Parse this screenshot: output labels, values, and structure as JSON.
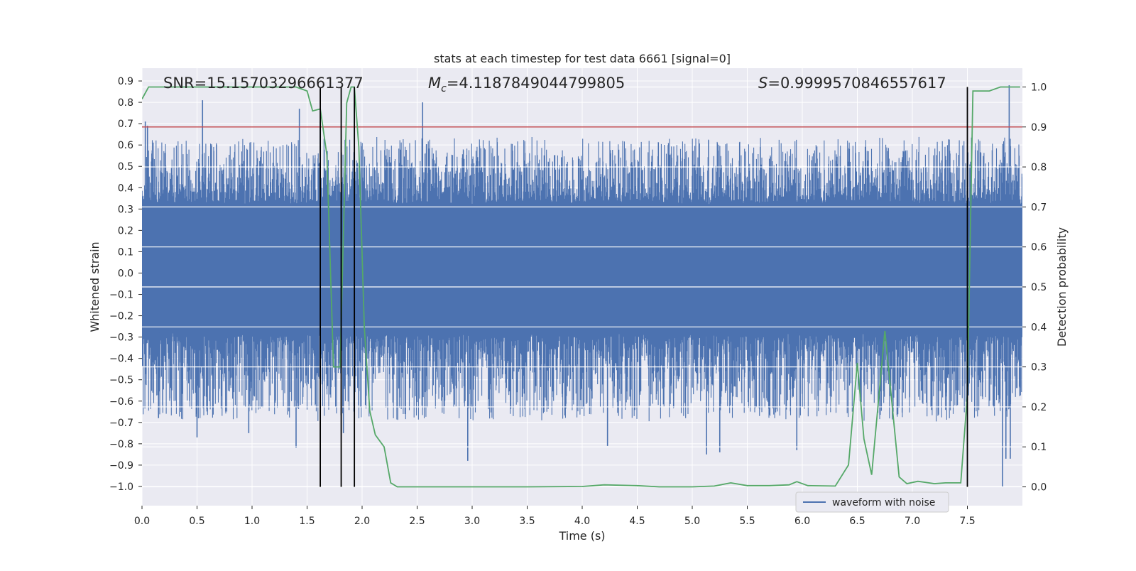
{
  "chart_data": {
    "type": "line",
    "title": "stats at each timestep for test data 6661 [signal=0]",
    "xlabel": "Time (s)",
    "ylabel_left": "Whitened strain",
    "ylabel_right": "Detection probability",
    "xlim": [
      0.0,
      8.0
    ],
    "ylim_left": [
      -1.09,
      0.96
    ],
    "ylim_right": [
      -0.047,
      1.047
    ],
    "x_ticks": [
      "0.0",
      "0.5",
      "1.0",
      "1.5",
      "2.0",
      "2.5",
      "3.0",
      "3.5",
      "4.0",
      "4.5",
      "5.0",
      "5.5",
      "6.0",
      "6.5",
      "7.0",
      "7.5"
    ],
    "x_tick_values": [
      0.0,
      0.5,
      1.0,
      1.5,
      2.0,
      2.5,
      3.0,
      3.5,
      4.0,
      4.5,
      5.0,
      5.5,
      6.0,
      6.5,
      7.0,
      7.5
    ],
    "y_left_ticks": [
      "0.9",
      "0.8",
      "0.7",
      "0.6",
      "0.5",
      "0.4",
      "0.3",
      "0.2",
      "0.1",
      "0.0",
      "−0.1",
      "−0.2",
      "−0.3",
      "−0.4",
      "−0.5",
      "−0.6",
      "−0.7",
      "−0.8",
      "−0.9",
      "−1.0"
    ],
    "y_left_tick_values": [
      0.9,
      0.8,
      0.7,
      0.6,
      0.5,
      0.4,
      0.3,
      0.2,
      0.1,
      0.0,
      -0.1,
      -0.2,
      -0.3,
      -0.4,
      -0.5,
      -0.6,
      -0.7,
      -0.8,
      -0.9,
      -1.0
    ],
    "y_right_ticks": [
      "1.0",
      "0.9",
      "0.8",
      "0.7",
      "0.6",
      "0.5",
      "0.4",
      "0.3",
      "0.2",
      "0.1",
      "0.0"
    ],
    "y_right_tick_values": [
      1.0,
      0.9,
      0.8,
      0.7,
      0.6,
      0.5,
      0.4,
      0.3,
      0.2,
      0.1,
      0.0
    ],
    "annotations": {
      "snr": "SNR=15.15703296661377",
      "mc_symbol": "M",
      "mc_sub": "c",
      "mc_value": "=4.1187849044799805",
      "s_symbol": "S",
      "s_value": "=0.9999570846557617"
    },
    "threshold_line": {
      "value_right_axis": 0.9,
      "color": "#c44e52"
    },
    "vertical_markers": [
      1.62,
      1.81,
      1.93,
      7.5
    ],
    "waveform": {
      "name": "waveform with noise",
      "color": "#4c72b0",
      "core_amplitude_range": [
        -0.28,
        0.32
      ],
      "max": 0.88,
      "min": -1.0,
      "peaks": [
        {
          "t": 0.03,
          "v": 0.71
        },
        {
          "t": 0.05,
          "v": 0.69
        },
        {
          "t": 0.55,
          "v": 0.81
        },
        {
          "t": 1.43,
          "v": 0.77
        },
        {
          "t": 1.62,
          "v": 0.71
        },
        {
          "t": 1.93,
          "v": 0.86
        },
        {
          "t": 2.55,
          "v": 0.8
        },
        {
          "t": 7.88,
          "v": 0.88
        },
        {
          "t": 0.15,
          "v": -0.68
        },
        {
          "t": 0.5,
          "v": -0.77
        },
        {
          "t": 0.97,
          "v": -0.75
        },
        {
          "t": 1.4,
          "v": -0.82
        },
        {
          "t": 1.83,
          "v": -0.75
        },
        {
          "t": 2.96,
          "v": -0.88
        },
        {
          "t": 4.23,
          "v": -0.81
        },
        {
          "t": 5.13,
          "v": -0.85
        },
        {
          "t": 5.25,
          "v": -0.84
        },
        {
          "t": 5.95,
          "v": -0.83
        },
        {
          "t": 7.82,
          "v": -1.0
        },
        {
          "t": 7.85,
          "v": -0.87
        },
        {
          "t": 7.89,
          "v": -0.87
        }
      ]
    },
    "detection_probability": {
      "name": "Detection probability",
      "color": "#55a868",
      "x": [
        0.0,
        0.06,
        0.2,
        0.4,
        0.6,
        0.8,
        1.0,
        1.2,
        1.4,
        1.5,
        1.55,
        1.62,
        1.68,
        1.74,
        1.8,
        1.86,
        1.9,
        1.93,
        1.97,
        2.02,
        2.07,
        2.12,
        2.2,
        2.26,
        2.32,
        2.5,
        3.0,
        3.5,
        4.0,
        4.2,
        4.5,
        4.7,
        5.0,
        5.2,
        5.35,
        5.5,
        5.7,
        5.88,
        5.95,
        6.05,
        6.3,
        6.42,
        6.5,
        6.56,
        6.63,
        6.75,
        6.88,
        6.95,
        7.05,
        7.2,
        7.3,
        7.44,
        7.5,
        7.55,
        7.6,
        7.7,
        7.8,
        7.9,
        7.98
      ],
      "y": [
        0.97,
        1.0,
        1.0,
        1.0,
        1.0,
        1.0,
        1.0,
        1.0,
        1.0,
        0.99,
        0.94,
        0.945,
        0.83,
        0.3,
        0.3,
        0.96,
        1.0,
        1.0,
        0.85,
        0.4,
        0.19,
        0.13,
        0.1,
        0.01,
        0.0,
        0.0,
        0.0,
        0.0,
        0.001,
        0.005,
        0.003,
        0.0,
        0.0,
        0.002,
        0.01,
        0.003,
        0.003,
        0.005,
        0.013,
        0.003,
        0.002,
        0.055,
        0.31,
        0.12,
        0.03,
        0.39,
        0.025,
        0.008,
        0.014,
        0.008,
        0.01,
        0.01,
        0.23,
        0.99,
        0.99,
        0.99,
        1.0,
        1.0,
        1.0
      ]
    },
    "legend": {
      "entries": [
        "waveform with noise"
      ],
      "placement": "lower-right"
    }
  }
}
